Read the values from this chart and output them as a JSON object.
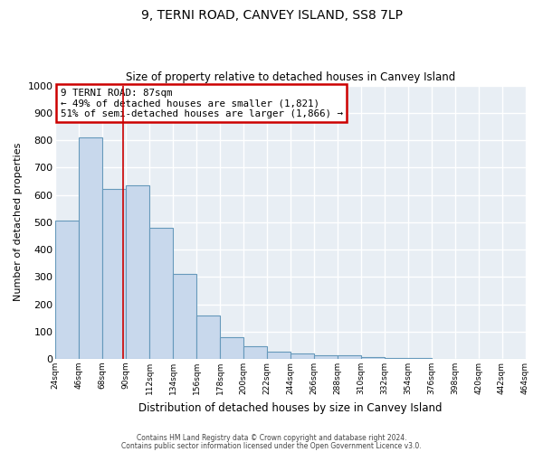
{
  "title": "9, TERNI ROAD, CANVEY ISLAND, SS8 7LP",
  "subtitle": "Size of property relative to detached houses in Canvey Island",
  "xlabel": "Distribution of detached houses by size in Canvey Island",
  "ylabel": "Number of detached properties",
  "bar_color": "#c8d8ec",
  "bar_edge_color": "#6699bb",
  "background_color": "#e8eef4",
  "grid_color": "#ffffff",
  "fig_color": "#ffffff",
  "ylim": [
    0,
    1000
  ],
  "yticks": [
    0,
    100,
    200,
    300,
    400,
    500,
    600,
    700,
    800,
    900,
    1000
  ],
  "bin_edges": [
    24,
    46,
    68,
    90,
    112,
    134,
    156,
    178,
    200,
    222,
    244,
    266,
    288,
    310,
    332,
    354,
    376,
    398,
    420,
    442,
    464
  ],
  "bin_labels": [
    "24sqm",
    "46sqm",
    "68sqm",
    "90sqm",
    "112sqm",
    "134sqm",
    "156sqm",
    "178sqm",
    "200sqm",
    "222sqm",
    "244sqm",
    "266sqm",
    "288sqm",
    "310sqm",
    "332sqm",
    "354sqm",
    "376sqm",
    "398sqm",
    "420sqm",
    "442sqm",
    "464sqm"
  ],
  "counts": [
    505,
    810,
    620,
    635,
    480,
    310,
    160,
    80,
    47,
    25,
    20,
    12,
    12,
    8,
    5,
    3,
    1,
    1,
    0,
    0
  ],
  "vline_x": 87,
  "vline_color": "#cc0000",
  "annotation_title": "9 TERNI ROAD: 87sqm",
  "annotation_line1": "← 49% of detached houses are smaller (1,821)",
  "annotation_line2": "51% of semi-detached houses are larger (1,866) →",
  "annotation_box_color": "#ffffff",
  "annotation_edge_color": "#cc0000",
  "footer_line1": "Contains HM Land Registry data © Crown copyright and database right 2024.",
  "footer_line2": "Contains public sector information licensed under the Open Government Licence v3.0."
}
